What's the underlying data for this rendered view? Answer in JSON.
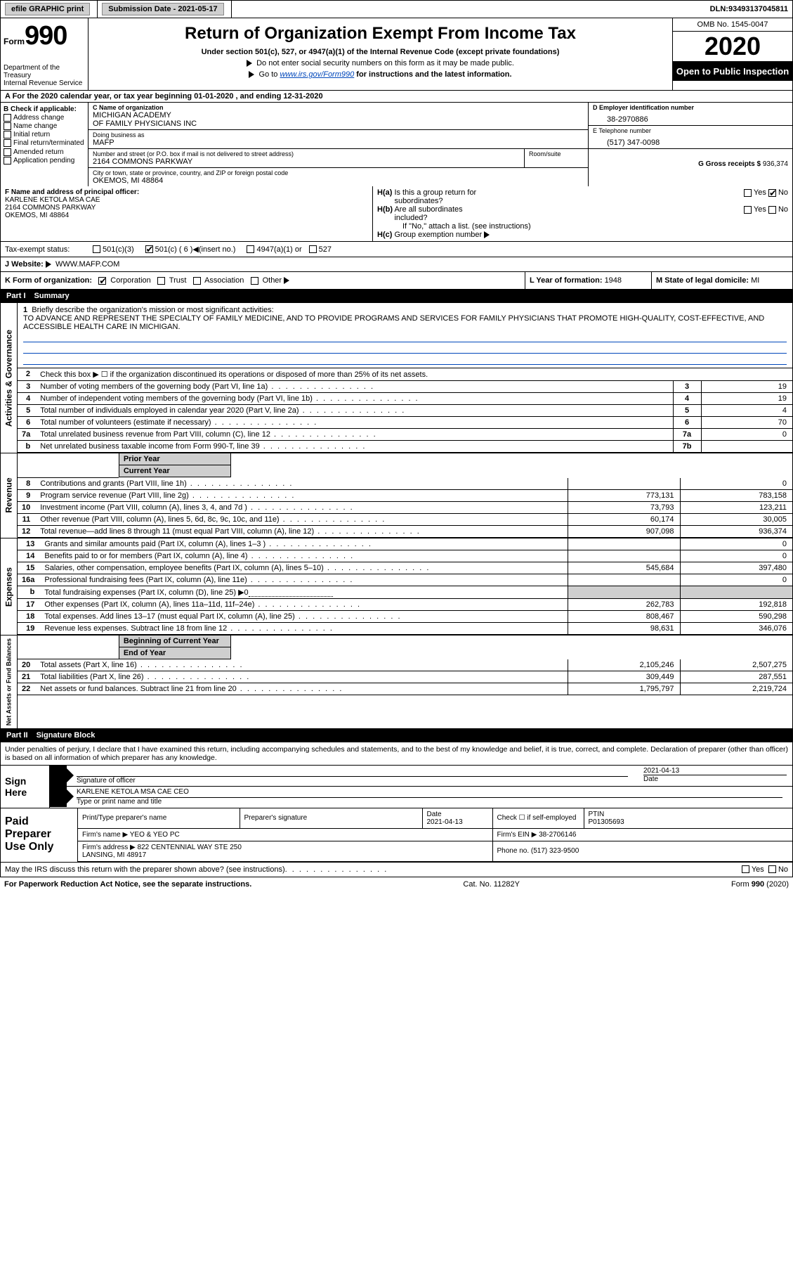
{
  "topbar": {
    "efile": "efile GRAPHIC print",
    "subdate_lbl": "Submission Date - ",
    "subdate": "2021-05-17",
    "dln_lbl": "DLN: ",
    "dln": "93493137045811"
  },
  "header": {
    "form_prefix": "Form",
    "form_num": "990",
    "dept": "Department of the Treasury\nInternal Revenue Service",
    "title": "Return of Organization Exempt From Income Tax",
    "sub": "Under section 501(c), 527, or 4947(a)(1) of the Internal Revenue Code (except private foundations)",
    "arrow1": "Do not enter social security numbers on this form as it may be made public.",
    "arrow2_pre": "Go to ",
    "arrow2_link": "www.irs.gov/Form990",
    "arrow2_post": " for instructions and the latest information.",
    "omb": "OMB No. 1545-0047",
    "year": "2020",
    "open": "Open to Public Inspection"
  },
  "rowA": "A For the 2020 calendar year, or tax year beginning 01-01-2020    , and ending 12-31-2020",
  "colB": {
    "head": "B Check if applicable:",
    "items": [
      "Address change",
      "Name change",
      "Initial return",
      "Final return/terminated",
      "Amended return",
      "Application pending"
    ]
  },
  "colC": {
    "name_lbl": "C Name of organization",
    "name": "MICHIGAN ACADEMY\nOF FAMILY PHYSICIANS INC",
    "dba_lbl": "Doing business as",
    "dba": "MAFP",
    "addr_lbl": "Number and street (or P.O. box if mail is not delivered to street address)",
    "room_lbl": "Room/suite",
    "addr": "2164 COMMONS PARKWAY",
    "city_lbl": "City or town, state or province, country, and ZIP or foreign postal code",
    "city": "OKEMOS, MI  48864"
  },
  "colD": {
    "ein_lbl": "D Employer identification number",
    "ein": "38-2970886",
    "phone_lbl": "E Telephone number",
    "phone": "(517) 347-0098",
    "gross_lbl": "G Gross receipts $ ",
    "gross": "936,374"
  },
  "rowF": {
    "lbl": "F  Name and address of principal officer:",
    "name": "KARLENE KETOLA MSA CAE",
    "addr": "2164 COMMONS PARKWAY\nOKEMOS, MI  48864",
    "ha": "H(a)  Is this a group return for subordinates?",
    "hb": "H(b)  Are all subordinates included?",
    "hb_note": "If \"No,\" attach a list. (see instructions)",
    "hc": "H(c)  Group exemption number",
    "yes": "Yes",
    "no": "No"
  },
  "tax": {
    "lbl": "Tax-exempt status:",
    "o1": "501(c)(3)",
    "o2": "501(c) ( 6 )",
    "o2_post": "(insert no.)",
    "o3": "4947(a)(1) or",
    "o4": "527"
  },
  "web": {
    "lbl": "J  Website:",
    "val": "WWW.MAFP.COM"
  },
  "kform": {
    "k": "K Form of organization:",
    "opts": [
      "Corporation",
      "Trust",
      "Association",
      "Other"
    ],
    "l_lbl": "L Year of formation: ",
    "l_val": "1948",
    "m_lbl": "M State of legal domicile: ",
    "m_val": "MI"
  },
  "part1": {
    "hdr_num": "Part I",
    "hdr_txt": "Summary",
    "vtab1": "Activities & Governance",
    "vtab2": "Revenue",
    "vtab3": "Expenses",
    "vtab4": "Net Assets or Fund Balances",
    "q1": "Briefly describe the organization's mission or most significant activities:",
    "mission": "TO ADVANCE AND REPRESENT THE SPECIALTY OF FAMILY MEDICINE, AND TO PROVIDE PROGRAMS AND SERVICES FOR FAMILY PHYSICIANS THAT PROMOTE HIGH-QUALITY, COST-EFFECTIVE, AND ACCESSIBLE HEALTH CARE IN MICHIGAN.",
    "q2": "Check this box ▶ ☐  if the organization discontinued its operations or disposed of more than 25% of its net assets.",
    "rows_a": [
      {
        "n": "3",
        "t": "Number of voting members of the governing body (Part VI, line 1a)",
        "box": "3",
        "v": "19"
      },
      {
        "n": "4",
        "t": "Number of independent voting members of the governing body (Part VI, line 1b)",
        "box": "4",
        "v": "19"
      },
      {
        "n": "5",
        "t": "Total number of individuals employed in calendar year 2020 (Part V, line 2a)",
        "box": "5",
        "v": "4"
      },
      {
        "n": "6",
        "t": "Total number of volunteers (estimate if necessary)",
        "box": "6",
        "v": "70"
      },
      {
        "n": "7a",
        "t": "Total unrelated business revenue from Part VIII, column (C), line 12",
        "box": "7a",
        "v": "0"
      },
      {
        "n": "b",
        "t": "Net unrelated business taxable income from Form 990-T, line 39",
        "box": "7b",
        "v": ""
      }
    ],
    "col_py": "Prior Year",
    "col_cy": "Current Year",
    "rows_b": [
      {
        "n": "8",
        "t": "Contributions and grants (Part VIII, line 1h)",
        "py": "",
        "cy": "0"
      },
      {
        "n": "9",
        "t": "Program service revenue (Part VIII, line 2g)",
        "py": "773,131",
        "cy": "783,158"
      },
      {
        "n": "10",
        "t": "Investment income (Part VIII, column (A), lines 3, 4, and 7d )",
        "py": "73,793",
        "cy": "123,211"
      },
      {
        "n": "11",
        "t": "Other revenue (Part VIII, column (A), lines 5, 6d, 8c, 9c, 10c, and 11e)",
        "py": "60,174",
        "cy": "30,005"
      },
      {
        "n": "12",
        "t": "Total revenue—add lines 8 through 11 (must equal Part VIII, column (A), line 12)",
        "py": "907,098",
        "cy": "936,374"
      }
    ],
    "rows_c": [
      {
        "n": "13",
        "t": "Grants and similar amounts paid (Part IX, column (A), lines 1–3 )",
        "py": "",
        "cy": "0"
      },
      {
        "n": "14",
        "t": "Benefits paid to or for members (Part IX, column (A), line 4)",
        "py": "",
        "cy": "0"
      },
      {
        "n": "15",
        "t": "Salaries, other compensation, employee benefits (Part IX, column (A), lines 5–10)",
        "py": "545,684",
        "cy": "397,480"
      },
      {
        "n": "16a",
        "t": "Professional fundraising fees (Part IX, column (A), line 11e)",
        "py": "",
        "cy": "0"
      },
      {
        "n": "b",
        "t": "Total fundraising expenses (Part IX, column (D), line 25) ▶0",
        "py": "shade",
        "cy": "shade"
      },
      {
        "n": "17",
        "t": "Other expenses (Part IX, column (A), lines 11a–11d, 11f–24e)",
        "py": "262,783",
        "cy": "192,818"
      },
      {
        "n": "18",
        "t": "Total expenses. Add lines 13–17 (must equal Part IX, column (A), line 25)",
        "py": "808,467",
        "cy": "590,298"
      },
      {
        "n": "19",
        "t": "Revenue less expenses. Subtract line 18 from line 12",
        "py": "98,631",
        "cy": "346,076"
      }
    ],
    "col_boy": "Beginning of Current Year",
    "col_eoy": "End of Year",
    "rows_d": [
      {
        "n": "20",
        "t": "Total assets (Part X, line 16)",
        "py": "2,105,246",
        "cy": "2,507,275"
      },
      {
        "n": "21",
        "t": "Total liabilities (Part X, line 26)",
        "py": "309,449",
        "cy": "287,551"
      },
      {
        "n": "22",
        "t": "Net assets or fund balances. Subtract line 21 from line 20",
        "py": "1,795,797",
        "cy": "2,219,724"
      }
    ]
  },
  "part2": {
    "hdr_num": "Part II",
    "hdr_txt": "Signature Block"
  },
  "sig_intro": "Under penalties of perjury, I declare that I have examined this return, including accompanying schedules and statements, and to the best of my knowledge and belief, it is true, correct, and complete. Declaration of preparer (other than officer) is based on all information of which preparer has any knowledge.",
  "sign": {
    "lbl": "Sign Here",
    "sig_lbl": "Signature of officer",
    "date_lbl": "Date",
    "date": "2021-04-13",
    "name": "KARLENE KETOLA MSA CAE  CEO",
    "name_lbl": "Type or print name and title"
  },
  "prep": {
    "lbl": "Paid Preparer Use Only",
    "h1": "Print/Type preparer's name",
    "h2": "Preparer's signature",
    "h3_lbl": "Date",
    "h3": "2021-04-13",
    "h4": "Check ☐  if self-employed",
    "h5_lbl": "PTIN",
    "h5": "P01305693",
    "firm_lbl": "Firm's name     ▶ ",
    "firm": "YEO & YEO PC",
    "ein_lbl": "Firm's EIN ▶ ",
    "ein": "38-2706146",
    "addr_lbl": "Firm's address ▶ ",
    "addr": "822 CENTENNIAL WAY STE 250\nLANSING, MI  48917",
    "phone_lbl": "Phone no. ",
    "phone": "(517) 323-9500"
  },
  "discuss": {
    "q": "May the IRS discuss this return with the preparer shown above? (see instructions)",
    "yes": "Yes",
    "no": "No"
  },
  "footer": {
    "left": "For Paperwork Reduction Act Notice, see the separate instructions.",
    "mid": "Cat. No. 11282Y",
    "right": "Form 990 (2020)"
  }
}
